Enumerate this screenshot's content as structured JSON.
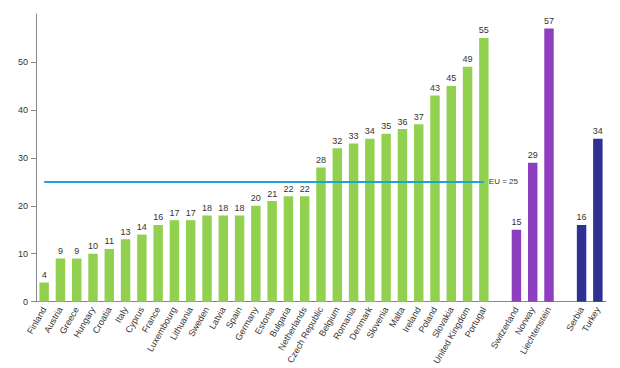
{
  "chart_data": {
    "type": "bar",
    "categories": [
      "Finland",
      "Austria",
      "Greece",
      "Hungary",
      "Croatia",
      "Italy",
      "Cyprus",
      "France",
      "Luxembourg",
      "Lithuania",
      "Sweden",
      "Latvia",
      "Spain",
      "Germany",
      "Estonia",
      "Bulgaria",
      "Netherlands",
      "Czech Republic",
      "Belgium",
      "Romania",
      "Denmark",
      "Slovenia",
      "Malta",
      "Ireland",
      "Poland",
      "Slovakia",
      "United Kingdom",
      "Portugal",
      null,
      "Switzerland",
      "Norway",
      "Liechtenstein",
      null,
      "Serbia",
      "Turkey"
    ],
    "values": [
      4,
      9,
      9,
      10,
      11,
      13,
      14,
      16,
      17,
      17,
      18,
      18,
      18,
      20,
      21,
      22,
      22,
      28,
      32,
      33,
      34,
      35,
      36,
      37,
      43,
      45,
      49,
      55,
      null,
      15,
      29,
      57,
      null,
      16,
      34
    ],
    "colors": [
      "#92d050",
      "#92d050",
      "#92d050",
      "#92d050",
      "#92d050",
      "#92d050",
      "#92d050",
      "#92d050",
      "#92d050",
      "#92d050",
      "#92d050",
      "#92d050",
      "#92d050",
      "#92d050",
      "#92d050",
      "#92d050",
      "#92d050",
      "#92d050",
      "#92d050",
      "#92d050",
      "#92d050",
      "#92d050",
      "#92d050",
      "#92d050",
      "#92d050",
      "#92d050",
      "#92d050",
      "#92d050",
      null,
      "#8e3fbf",
      "#8e3fbf",
      "#8e3fbf",
      null,
      "#2e3192",
      "#2e3192"
    ],
    "reference_line": {
      "value": 25,
      "label": "EU = 25",
      "color": "#1fa2d8"
    },
    "ylim": [
      0,
      60
    ],
    "yticks": [
      0,
      10,
      20,
      30,
      40,
      50
    ],
    "grid": false,
    "data_labels": true
  }
}
